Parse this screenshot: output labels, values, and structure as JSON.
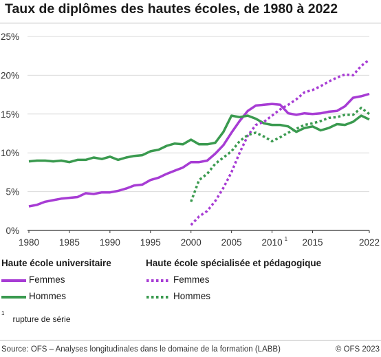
{
  "title": "Taux de diplômes des hautes écoles, de 1980 à 2022",
  "colors": {
    "violet": "#a73cd4",
    "dotted_violet": "#a73cd4",
    "green": "#3a9a4f",
    "grid": "#d9d9d9",
    "axis": "#333333"
  },
  "chart_data": {
    "type": "line",
    "x_ticks": [
      "1980",
      "1985",
      "1990",
      "1995",
      "2000",
      "2005",
      "2010",
      "2015",
      "2022"
    ],
    "x_tick_superscripts": {
      "2010": "1"
    },
    "y_ticks": [
      "0%",
      "5%",
      "10%",
      "15%",
      "20%",
      "25%"
    ],
    "xlim": [
      1980,
      2022
    ],
    "ylim": [
      0,
      25
    ],
    "series": [
      {
        "group": "Haute école universitaire",
        "name": "Femmes",
        "color": "#a73cd4",
        "style": "solid",
        "x": [
          1980,
          1981,
          1982,
          1983,
          1984,
          1985,
          1986,
          1987,
          1988,
          1989,
          1990,
          1991,
          1992,
          1993,
          1994,
          1995,
          1996,
          1997,
          1998,
          1999,
          2000,
          2001,
          2002,
          2003,
          2004,
          2005,
          2006,
          2007,
          2008,
          2009,
          2010,
          2011,
          2012,
          2013,
          2014,
          2015,
          2016,
          2017,
          2018,
          2019,
          2020,
          2021,
          2022
        ],
        "y": [
          3.1,
          3.3,
          3.7,
          3.9,
          4.1,
          4.2,
          4.3,
          4.8,
          4.7,
          4.9,
          4.9,
          5.1,
          5.4,
          5.8,
          5.9,
          6.5,
          6.8,
          7.3,
          7.7,
          8.1,
          8.8,
          8.8,
          9.0,
          9.9,
          11.0,
          12.6,
          14.1,
          15.4,
          16.1,
          16.2,
          16.3,
          16.2,
          15.1,
          14.9,
          15.1,
          15.0,
          15.1,
          15.3,
          15.4,
          16.0,
          17.1,
          17.3,
          17.6
        ]
      },
      {
        "group": "Haute école universitaire",
        "name": "Hommes",
        "color": "#3a9a4f",
        "style": "solid",
        "x": [
          1980,
          1981,
          1982,
          1983,
          1984,
          1985,
          1986,
          1987,
          1988,
          1989,
          1990,
          1991,
          1992,
          1993,
          1994,
          1995,
          1996,
          1997,
          1998,
          1999,
          2000,
          2001,
          2002,
          2003,
          2004,
          2005,
          2006,
          2007,
          2008,
          2009,
          2010,
          2011,
          2012,
          2013,
          2014,
          2015,
          2016,
          2017,
          2018,
          2019,
          2020,
          2021,
          2022
        ],
        "y": [
          8.9,
          9.0,
          9.0,
          8.9,
          9.0,
          8.8,
          9.1,
          9.1,
          9.4,
          9.2,
          9.5,
          9.1,
          9.4,
          9.6,
          9.7,
          10.2,
          10.4,
          10.9,
          11.2,
          11.1,
          11.7,
          11.1,
          11.1,
          11.3,
          12.7,
          14.8,
          14.6,
          14.8,
          14.4,
          13.8,
          13.6,
          13.6,
          13.4,
          12.7,
          13.2,
          13.4,
          12.9,
          13.2,
          13.7,
          13.6,
          14.0,
          14.8,
          14.3
        ]
      },
      {
        "group": "Haute école spécialisée et pédagogique",
        "name": "Femmes",
        "color": "#a73cd4",
        "style": "dotted",
        "x": [
          2000,
          2001,
          2002,
          2003,
          2004,
          2005,
          2006,
          2007,
          2008,
          2009,
          2010,
          2011,
          2012,
          2013,
          2014,
          2015,
          2016,
          2017,
          2018,
          2019,
          2020,
          2021,
          2022
        ],
        "y": [
          0.7,
          1.8,
          2.5,
          3.8,
          5.5,
          7.5,
          10.0,
          12.2,
          13.6,
          14.0,
          14.8,
          15.6,
          16.2,
          16.9,
          17.8,
          18.1,
          18.6,
          19.2,
          19.7,
          20.1,
          20.0,
          21.2,
          22.0
        ]
      },
      {
        "group": "Haute école spécialisée et pédagogique",
        "name": "Hommes",
        "color": "#3a9a4f",
        "style": "dotted",
        "x": [
          2000,
          2001,
          2002,
          2003,
          2004,
          2005,
          2006,
          2007,
          2008,
          2009,
          2010,
          2011,
          2012,
          2013,
          2014,
          2015,
          2016,
          2017,
          2018,
          2019,
          2020,
          2021,
          2022
        ],
        "y": [
          3.7,
          6.5,
          7.3,
          8.6,
          9.4,
          10.2,
          11.5,
          12.3,
          12.6,
          12.1,
          11.5,
          12.0,
          12.6,
          13.1,
          13.6,
          13.8,
          14.1,
          14.5,
          14.6,
          14.9,
          14.9,
          15.8,
          15.0
        ]
      }
    ],
    "grid": true
  },
  "legend": {
    "uni_title": "Haute école universitaire",
    "hes_title": "Haute école spécialisée et pédagogique",
    "women": "Femmes",
    "men": "Hommes"
  },
  "footnote": {
    "mark": "1",
    "text": "rupture de série"
  },
  "source": "Source: OFS – Analyses longitudinales dans le domaine de la formation (LABB)",
  "copyright": "© OFS 2023"
}
